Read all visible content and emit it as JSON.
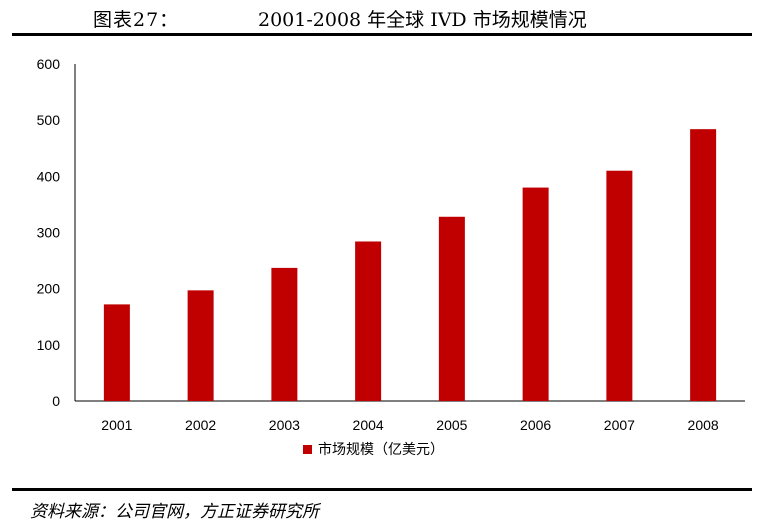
{
  "header": {
    "figure_label": "图表27：",
    "title": "2001-2008 年全球 IVD 市场规模情况"
  },
  "footer": {
    "source": "资料来源：公司官网，方正证券研究所"
  },
  "colors": {
    "bar": "#c00000",
    "axis": "#000000",
    "text": "#000000"
  },
  "chart_data": {
    "type": "bar",
    "categories": [
      "2001",
      "2002",
      "2003",
      "2004",
      "2005",
      "2006",
      "2007",
      "2008"
    ],
    "series": [
      {
        "name": "市场规模（亿美元）",
        "values": [
          172,
          197,
          237,
          284,
          328,
          380,
          410,
          484
        ]
      }
    ],
    "title": "",
    "xlabel": "",
    "ylabel": "",
    "ylim": [
      0,
      600
    ],
    "yticks": [
      0,
      100,
      200,
      300,
      400,
      500,
      600
    ],
    "grid": false,
    "legend_position": "bottom-center"
  }
}
